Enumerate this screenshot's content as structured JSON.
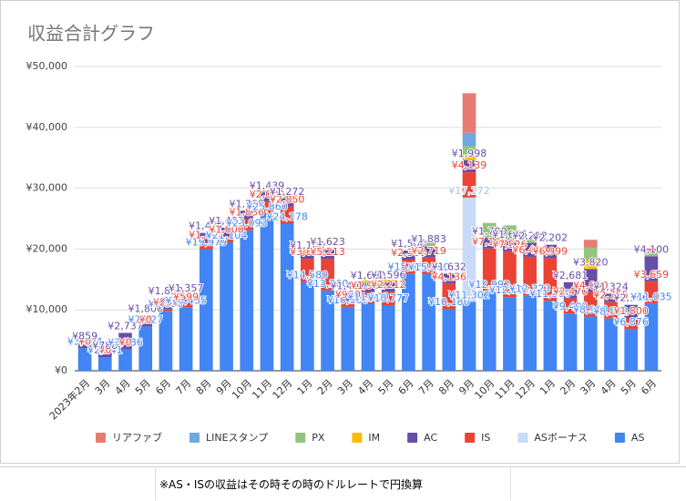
{
  "chart_data": {
    "type": "stacked-bar",
    "title": "収益合計グラフ",
    "categories": [
      "2023年2月",
      "3月",
      "4月",
      "5月",
      "6月",
      "7月",
      "8月",
      "9月",
      "10月",
      "11月",
      "12月",
      "1月",
      "2月",
      "3月",
      "4月",
      "5月",
      "6月",
      "7月",
      "8月",
      "9月",
      "10月",
      "11月",
      "12月",
      "1月",
      "2月",
      "3月",
      "4月",
      "5月",
      "6月"
    ],
    "series": [
      {
        "name": "AS",
        "color": "#4285f4",
        "values": [
          3694,
          2241,
          3486,
          7227,
          9850,
          10435,
          19979,
          21104,
          23093,
          25860,
          24178,
          14580,
          13200,
          10500,
          11000,
          10777,
          15960,
          15880,
          10180,
          11302,
          12992,
          12100,
          12323,
          11500,
          9400,
          8900,
          8582,
          6876,
          11035
        ],
        "value_labels": [
          "¥3,694",
          "¥2,241",
          "¥3,486",
          "¥7,227",
          "¥9,850",
          "¥10,435",
          "¥19,979",
          "¥21,104",
          "¥23,093",
          "¥25,860",
          "¥24,178",
          "¥14,580",
          "¥13,200",
          "¥10,500",
          "¥11,000",
          "¥10,777",
          "¥15,960",
          "¥15,880",
          "¥10,180",
          "¥11,302",
          "¥12,992",
          "¥12,100",
          "¥12,323",
          "¥11,500",
          "¥9,400",
          "¥8,900",
          "¥8,582",
          "¥6,876",
          "¥11,035"
        ]
      },
      {
        "name": "ASボーナス",
        "color": "#c9daf8",
        "values": [
          null,
          null,
          null,
          null,
          null,
          null,
          null,
          null,
          null,
          null,
          null,
          null,
          null,
          null,
          null,
          null,
          null,
          null,
          null,
          17172,
          null,
          null,
          null,
          null,
          null,
          null,
          null,
          null,
          null
        ],
        "value_labels": [
          null,
          null,
          null,
          null,
          null,
          null,
          null,
          null,
          null,
          null,
          null,
          null,
          null,
          null,
          null,
          null,
          null,
          null,
          null,
          "¥17,172",
          null,
          null,
          null,
          null,
          null,
          null,
          null,
          null,
          null
        ]
      },
      {
        "name": "IS",
        "color": "#ea4335",
        "values": [
          0,
          0,
          0,
          0,
          290,
          599,
          1192,
          1000,
          1836,
          2000,
          2850,
          3800,
          5213,
          900,
          1900,
          2212,
          2300,
          2719,
          4136,
          4139,
          7100,
          7526,
          6400,
          6999,
          2470,
          4000,
          2755,
          1800,
          3659
        ],
        "value_labels": [
          "¥0",
          "¥0",
          "¥0",
          "¥0",
          "¥290",
          "¥599",
          "¥1,192",
          "¥1,000",
          "¥1,836",
          "¥2,000",
          "¥2,850",
          "¥3,800",
          "¥5,213",
          "¥900",
          "¥1,900",
          "¥2,212",
          "¥2,300",
          "¥2,719",
          "¥4,136",
          "¥4,139",
          "¥7,100",
          "¥7,526",
          "¥6,400",
          "¥6,999",
          "¥2,470",
          "¥4,000",
          "¥2,755",
          "¥1,800",
          "¥3,659"
        ]
      },
      {
        "name": "AC",
        "color": "#674ea7",
        "values": [
          859,
          788,
          2737,
          1800,
          1853,
          1357,
          1477,
          1403,
          1369,
          1439,
          1272,
          1100,
          1623,
          1400,
          1600,
          1596,
          1500,
          1883,
          1632,
          1998,
          1700,
          1666,
          2292,
          2202,
          2681,
          3820,
          1324,
          2146,
          4100
        ],
        "value_labels": [
          "¥859",
          "¥788",
          "¥2,737",
          "¥1,800",
          "¥1,853",
          "¥1,357",
          "¥1,477",
          "¥1,403",
          "¥1,369",
          "¥1,439",
          "¥1,272",
          "¥1,100",
          "¥1,623",
          "¥1,400",
          "¥1,600",
          "¥1,596",
          "¥1,500",
          "¥1,883",
          "¥1,632",
          "¥1,998",
          "¥1,700",
          "¥1,666",
          "¥2,292",
          "¥2,202",
          "¥2,681",
          "¥3,820",
          "¥1,324",
          "¥2,146",
          "¥4,100"
        ]
      },
      {
        "name": "IM",
        "color": "#fbbc04",
        "values": [
          null,
          null,
          null,
          null,
          null,
          null,
          null,
          null,
          null,
          null,
          null,
          500,
          null,
          null,
          400,
          400,
          null,
          null,
          null,
          800,
          null,
          null,
          null,
          null,
          null,
          1500,
          null,
          null,
          null
        ]
      },
      {
        "name": "PX",
        "color": "#93c47d",
        "values": [
          null,
          null,
          null,
          null,
          null,
          null,
          null,
          null,
          null,
          300,
          500,
          null,
          null,
          null,
          null,
          null,
          null,
          600,
          null,
          1500,
          2500,
          2600,
          600,
          null,
          null,
          2000,
          null,
          null,
          600
        ]
      },
      {
        "name": "LINEスタンプ",
        "color": "#6fa8dc",
        "values": [
          null,
          null,
          null,
          null,
          null,
          null,
          null,
          null,
          null,
          null,
          null,
          null,
          null,
          null,
          null,
          null,
          null,
          null,
          null,
          2200,
          null,
          null,
          null,
          null,
          null,
          null,
          null,
          null,
          null
        ]
      },
      {
        "name": "リアファブ",
        "color": "#e67c73",
        "values": [
          null,
          null,
          null,
          null,
          null,
          null,
          null,
          null,
          null,
          null,
          null,
          null,
          null,
          null,
          null,
          null,
          null,
          null,
          null,
          6500,
          null,
          null,
          null,
          null,
          null,
          1300,
          null,
          null,
          700
        ]
      }
    ],
    "ylim": [
      0,
      50000
    ],
    "yticks": [
      {
        "value": 0,
        "label": "¥0"
      },
      {
        "value": 10000,
        "label": "¥10,000"
      },
      {
        "value": 20000,
        "label": "¥20,000"
      },
      {
        "value": 30000,
        "label": "¥30,000"
      },
      {
        "value": 40000,
        "label": "¥40,000"
      },
      {
        "value": 50000,
        "label": "¥50,000"
      }
    ],
    "grid": true,
    "legend": "bottom"
  },
  "footer": {
    "note": "※AS・ISの収益はその時その時のドルレートで円換算"
  }
}
